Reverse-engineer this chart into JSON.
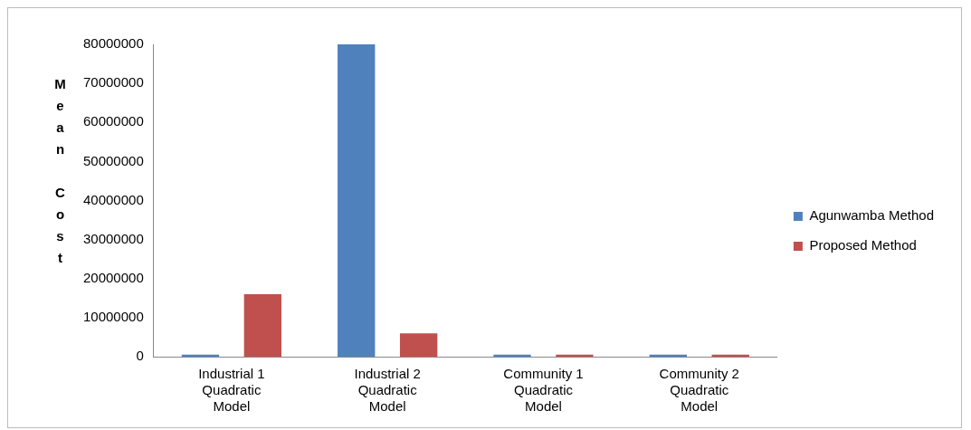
{
  "chart_data": {
    "type": "bar",
    "ylabel": "Mean Cost",
    "categories": [
      "Industrial 1 Quadratic Model",
      "Industrial 2 Quadratic Model",
      "Community 1 Quadratic Model",
      "Community 2 Quadratic Model"
    ],
    "series": [
      {
        "name": "Agunwamba Method",
        "color": "#4f81bd",
        "values": [
          500000,
          80000000,
          500000,
          500000
        ]
      },
      {
        "name": "Proposed Method",
        "color": "#c0504d",
        "values": [
          16000000,
          6000000,
          500000,
          500000
        ]
      }
    ],
    "ylim": [
      0,
      80000000
    ],
    "yticks": [
      0,
      10000000,
      20000000,
      30000000,
      40000000,
      50000000,
      60000000,
      70000000,
      80000000
    ],
    "grid": false,
    "legend": "right"
  }
}
